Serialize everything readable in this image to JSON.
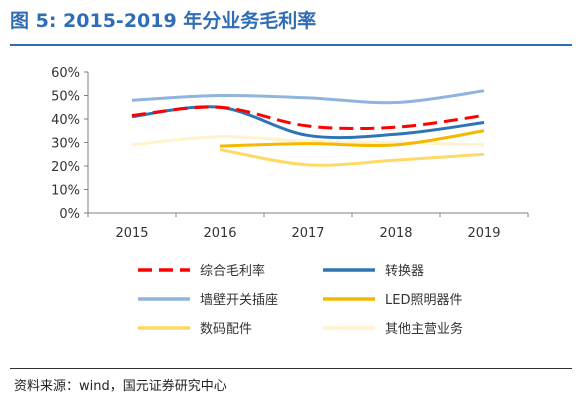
{
  "figure": {
    "title": "图 5:  2015-2019 年分业务毛利率",
    "source": "资料来源：wind，国元证券研究中心"
  },
  "colors": {
    "title": "#2f6db5",
    "rule": "#2f6db5"
  },
  "chart_data": {
    "type": "line",
    "title": "",
    "xlabel": "",
    "ylabel": "",
    "categories": [
      "2015",
      "2016",
      "2017",
      "2018",
      "2019"
    ],
    "yticks": [
      "0%",
      "10%",
      "20%",
      "30%",
      "40%",
      "50%",
      "60%"
    ],
    "ylim": [
      0,
      60
    ],
    "grid": false,
    "legend_position": "bottom",
    "series": [
      {
        "name": "综合毛利率",
        "values": [
          41.5,
          45,
          37,
          36.5,
          41.5
        ],
        "color": "#ff0000",
        "dashed": true
      },
      {
        "name": "转换器",
        "values": [
          41,
          45,
          33,
          33.5,
          38.5
        ],
        "color": "#2e75b6",
        "dashed": false
      },
      {
        "name": "墙壁开关插座",
        "values": [
          48,
          50,
          49,
          47,
          52
        ],
        "color": "#8fb4de",
        "dashed": false
      },
      {
        "name": "LED照明器件",
        "values": [
          null,
          28.5,
          29.5,
          29,
          35
        ],
        "color": "#f5b800",
        "dashed": false
      },
      {
        "name": "数码配件",
        "values": [
          null,
          27,
          20.5,
          22.5,
          25
        ],
        "color": "#ffd966",
        "dashed": false
      },
      {
        "name": "其他主营业务",
        "values": [
          29,
          32.5,
          30.5,
          30,
          29
        ],
        "color": "#fff2cc",
        "dashed": false
      }
    ]
  }
}
